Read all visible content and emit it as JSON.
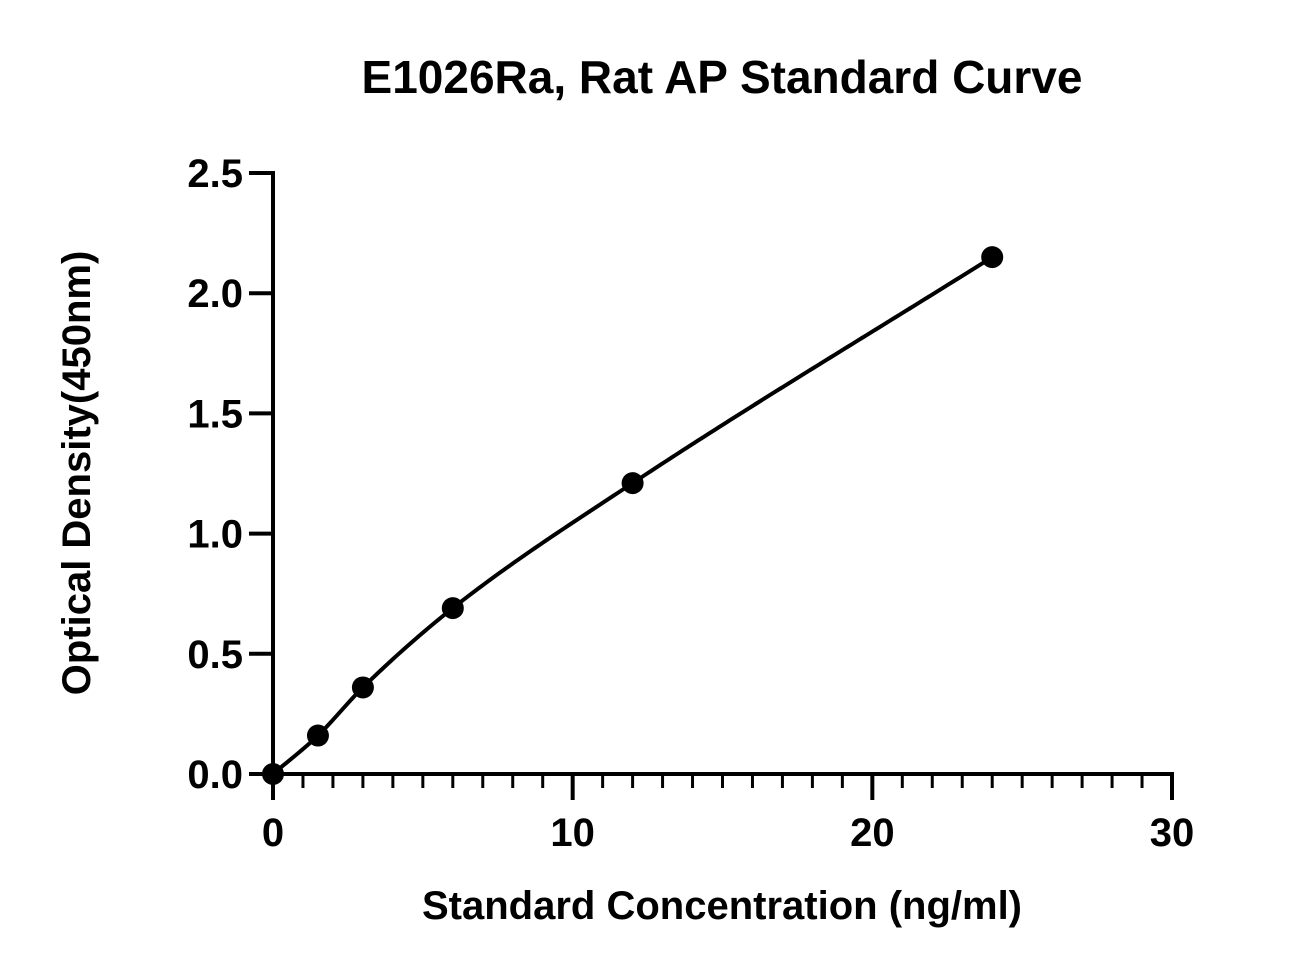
{
  "chart_data": {
    "type": "scatter",
    "title": "E1026Ra, Rat AP Standard Curve",
    "xlabel": "Standard Concentration (ng/ml)",
    "ylabel": "Optical Density(450nm)",
    "xlim": [
      0,
      30
    ],
    "ylim": [
      0,
      2.5
    ],
    "x_ticks": [
      "0",
      "10",
      "20",
      "30"
    ],
    "y_ticks": [
      "0.0",
      "0.5",
      "1.0",
      "1.5",
      "2.0",
      "2.5"
    ],
    "grid": false,
    "legend": "none",
    "series": [
      {
        "points": [
          {
            "x": 0,
            "y": 0.0
          },
          {
            "x": 1.5,
            "y": 0.16
          },
          {
            "x": 3,
            "y": 0.36
          },
          {
            "x": 6,
            "y": 0.69
          },
          {
            "x": 12,
            "y": 1.21
          },
          {
            "x": 24,
            "y": 2.15
          }
        ],
        "fit_line": true,
        "marker": "filled-circle",
        "color": "#000000"
      }
    ]
  }
}
